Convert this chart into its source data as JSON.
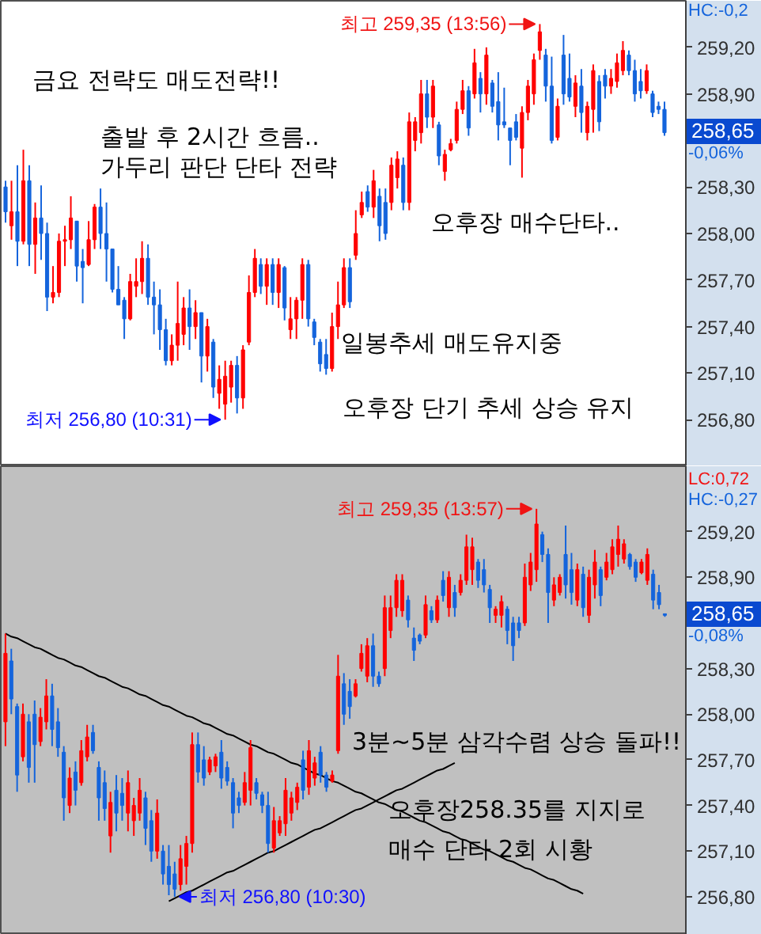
{
  "chart_data": [
    {
      "type": "candlestick",
      "categories": [
        null,
        null,
        null,
        null,
        null,
        null,
        null,
        null,
        null,
        null,
        null,
        null,
        null,
        null,
        null,
        null,
        null,
        null,
        null,
        null,
        null,
        null,
        null,
        null,
        null,
        null,
        null,
        null,
        null,
        null,
        null,
        null,
        null,
        null,
        null,
        null,
        null,
        null,
        null,
        null,
        null,
        null,
        null,
        null,
        null,
        null,
        null,
        null,
        null,
        null,
        null,
        null,
        null,
        null,
        null,
        null,
        null,
        null,
        null,
        null,
        null,
        null,
        null,
        null,
        null,
        null,
        null,
        null,
        null,
        null,
        null,
        null,
        null,
        null,
        null,
        null,
        null,
        null,
        null,
        null,
        null,
        null,
        null,
        null,
        null,
        null,
        null,
        null,
        null,
        null,
        null,
        null,
        null,
        null,
        null,
        null,
        null,
        null,
        null,
        null,
        null,
        null,
        null,
        null,
        null,
        null,
        null,
        null,
        null,
        null,
        null,
        null
      ],
      "ohlc": [
        [
          258.3,
          258.34,
          258.07,
          258.14
        ],
        [
          258.05,
          258.34,
          257.96,
          258.14
        ],
        [
          258.14,
          258.44,
          257.79,
          257.95
        ],
        [
          257.95,
          258.54,
          257.93,
          258.34
        ],
        [
          258.34,
          258.44,
          257.79,
          257.93
        ],
        [
          257.93,
          258.2,
          257.74,
          258.1
        ],
        [
          258.1,
          258.31,
          257.83,
          258.0
        ],
        [
          258.0,
          258.07,
          257.5,
          257.59
        ],
        [
          257.59,
          257.79,
          257.55,
          257.62
        ],
        [
          257.62,
          258.0,
          257.59,
          257.95
        ],
        [
          257.95,
          258.05,
          257.79,
          257.96
        ],
        [
          257.96,
          258.24,
          257.9,
          258.1
        ],
        [
          258.08,
          258.08,
          257.69,
          257.79
        ],
        [
          257.82,
          257.9,
          257.55,
          257.78
        ],
        [
          257.8,
          258.08,
          257.79,
          257.96
        ],
        [
          257.96,
          258.19,
          257.9,
          258.17
        ],
        [
          258.17,
          258.29,
          257.9,
          258.0
        ],
        [
          258.0,
          258.2,
          257.69,
          257.9
        ],
        [
          257.9,
          257.9,
          257.62,
          257.64
        ],
        [
          257.64,
          257.79,
          257.54,
          257.54
        ],
        [
          257.57,
          257.59,
          257.32,
          257.45
        ],
        [
          257.45,
          257.74,
          257.44,
          257.69
        ],
        [
          257.66,
          257.84,
          257.59,
          257.69
        ],
        [
          257.69,
          257.95,
          257.61,
          257.84
        ],
        [
          257.84,
          257.93,
          257.54,
          257.59
        ],
        [
          257.59,
          257.69,
          257.35,
          257.54
        ],
        [
          257.54,
          257.64,
          257.25,
          257.38
        ],
        [
          257.38,
          257.45,
          257.15,
          257.18
        ],
        [
          257.18,
          257.35,
          257.15,
          257.28
        ],
        [
          257.28,
          257.69,
          257.18,
          257.42
        ],
        [
          257.35,
          257.59,
          257.28,
          257.52
        ],
        [
          257.52,
          257.64,
          257.25,
          257.4
        ],
        [
          257.4,
          257.57,
          257.32,
          257.49
        ],
        [
          257.49,
          257.49,
          257.04,
          257.21
        ],
        [
          257.21,
          257.45,
          257.11,
          257.4
        ],
        [
          257.3,
          257.32,
          256.94,
          257.01
        ],
        [
          256.97,
          257.15,
          256.87,
          257.06
        ],
        [
          256.9,
          257.18,
          256.8,
          257.08
        ],
        [
          257.01,
          257.18,
          256.91,
          257.15
        ],
        [
          257.15,
          257.21,
          256.84,
          256.94
        ],
        [
          256.94,
          257.28,
          256.87,
          257.25
        ],
        [
          257.3,
          257.73,
          257.28,
          257.62
        ],
        [
          257.62,
          257.9,
          257.59,
          257.84
        ],
        [
          257.8,
          257.84,
          257.61,
          257.66
        ],
        [
          257.66,
          257.84,
          257.54,
          257.8
        ],
        [
          257.8,
          257.84,
          257.54,
          257.62
        ],
        [
          257.62,
          257.84,
          257.52,
          257.8
        ],
        [
          257.78,
          257.79,
          257.44,
          257.52
        ],
        [
          257.38,
          257.59,
          257.32,
          257.45
        ],
        [
          257.45,
          257.59,
          257.32,
          257.57
        ],
        [
          257.57,
          257.84,
          257.45,
          257.8
        ],
        [
          257.8,
          257.83,
          257.4,
          257.45
        ],
        [
          257.43,
          257.45,
          257.28,
          257.33
        ],
        [
          257.3,
          257.32,
          257.11,
          257.16
        ],
        [
          257.22,
          257.32,
          257.09,
          257.13
        ],
        [
          257.13,
          257.49,
          257.11,
          257.4
        ],
        [
          257.4,
          257.69,
          257.32,
          257.54
        ],
        [
          257.54,
          257.84,
          257.52,
          257.78
        ],
        [
          257.78,
          257.84,
          257.52,
          257.56
        ],
        [
          257.86,
          258.15,
          257.83,
          258.0
        ],
        [
          258.12,
          258.27,
          258.1,
          258.2
        ],
        [
          258.27,
          258.31,
          258.14,
          258.17
        ],
        [
          258.17,
          258.41,
          258.1,
          258.34
        ],
        [
          258.24,
          258.29,
          257.95,
          258.05
        ],
        [
          258.2,
          258.29,
          257.96,
          258.0
        ],
        [
          258.2,
          258.49,
          258.15,
          258.44
        ],
        [
          258.36,
          258.53,
          258.29,
          258.48
        ],
        [
          258.44,
          258.49,
          258.15,
          258.2
        ],
        [
          258.2,
          258.78,
          258.15,
          258.72
        ],
        [
          258.6,
          258.75,
          258.53,
          258.72
        ],
        [
          258.65,
          258.99,
          258.58,
          258.9
        ],
        [
          258.9,
          258.99,
          258.68,
          258.75
        ],
        [
          258.75,
          258.99,
          258.68,
          258.95
        ],
        [
          258.7,
          258.72,
          258.44,
          258.5
        ],
        [
          258.4,
          258.54,
          258.34,
          258.51
        ],
        [
          258.54,
          258.61,
          258.53,
          258.58
        ],
        [
          258.6,
          258.85,
          258.58,
          258.8
        ],
        [
          258.8,
          258.99,
          258.77,
          258.92
        ],
        [
          258.92,
          258.95,
          258.63,
          258.68
        ],
        [
          258.9,
          259.19,
          258.87,
          259.1
        ],
        [
          259.0,
          259.04,
          258.78,
          258.9
        ],
        [
          258.9,
          259.2,
          258.83,
          259.15
        ],
        [
          258.97,
          258.99,
          258.78,
          258.82
        ],
        [
          258.85,
          259.04,
          258.6,
          258.7
        ],
        [
          258.72,
          258.94,
          258.68,
          258.7
        ],
        [
          258.68,
          258.68,
          258.44,
          258.6
        ],
        [
          258.72,
          258.77,
          258.6,
          258.62
        ],
        [
          258.55,
          258.82,
          258.36,
          258.78
        ],
        [
          258.78,
          258.99,
          258.73,
          258.95
        ],
        [
          258.9,
          259.16,
          258.83,
          259.12
        ],
        [
          259.18,
          259.35,
          259.12,
          259.3
        ],
        [
          259.15,
          259.19,
          258.85,
          258.95
        ],
        [
          258.95,
          259.14,
          258.58,
          258.6
        ],
        [
          258.62,
          258.87,
          258.6,
          258.82
        ],
        [
          259.15,
          259.28,
          258.83,
          258.9
        ],
        [
          259.0,
          259.16,
          258.85,
          258.88
        ],
        [
          258.82,
          259.02,
          258.75,
          258.97
        ],
        [
          258.95,
          259.06,
          258.65,
          258.78
        ],
        [
          258.65,
          258.85,
          258.6,
          258.82
        ],
        [
          258.8,
          259.09,
          258.65,
          259.05
        ],
        [
          258.98,
          259.02,
          258.66,
          258.72
        ],
        [
          259.02,
          259.06,
          258.87,
          258.95
        ],
        [
          258.95,
          259.06,
          258.9,
          259.0
        ],
        [
          258.98,
          259.16,
          258.94,
          259.1
        ],
        [
          259.05,
          259.24,
          259.02,
          259.18
        ],
        [
          259.15,
          259.18,
          259.02,
          259.05
        ],
        [
          259.05,
          259.12,
          258.85,
          258.9
        ],
        [
          258.98,
          259.06,
          258.87,
          258.92
        ],
        [
          258.92,
          259.09,
          258.9,
          259.05
        ],
        [
          258.9,
          258.92,
          258.75,
          258.78
        ],
        [
          258.82,
          258.85,
          258.77,
          258.8
        ],
        [
          258.8,
          258.85,
          258.63,
          258.65
        ]
      ],
      "colors": [
        "#1464dc",
        "#ff0000",
        "#1464dc",
        "#ff0000",
        "#1464dc",
        "#ff0000",
        "#1464dc",
        "#1464dc",
        "#ff0000",
        "#ff0000",
        "#ff0000",
        "#ff0000",
        "#1464dc",
        "#1464dc",
        "#ff0000",
        "#ff0000",
        "#1464dc",
        "#1464dc",
        "#1464dc",
        "#1464dc",
        "#1464dc",
        "#ff0000",
        "#ff0000",
        "#ff0000",
        "#1464dc",
        "#1464dc",
        "#1464dc",
        "#1464dc",
        "#ff0000",
        "#ff0000",
        "#ff0000",
        "#1464dc",
        "#ff0000",
        "#1464dc",
        "#ff0000",
        "#1464dc",
        "#ff0000",
        "#ff0000",
        "#ff0000",
        "#1464dc",
        "#ff0000",
        "#ff0000",
        "#ff0000",
        "#1464dc",
        "#ff0000",
        "#1464dc",
        "#ff0000",
        "#1464dc",
        "#ff0000",
        "#ff0000",
        "#ff0000",
        "#1464dc",
        "#1464dc",
        "#1464dc",
        "#1464dc",
        "#ff0000",
        "#ff0000",
        "#ff0000",
        "#1464dc",
        "#ff0000",
        "#ff0000",
        "#1464dc",
        "#ff0000",
        "#1464dc",
        "#1464dc",
        "#ff0000",
        "#ff0000",
        "#1464dc",
        "#ff0000",
        "#ff0000",
        "#ff0000",
        "#1464dc",
        "#ff0000",
        "#1464dc",
        "#ff0000",
        "#ff0000",
        "#ff0000",
        "#ff0000",
        "#1464dc",
        "#ff0000",
        "#1464dc",
        "#ff0000",
        "#1464dc",
        "#1464dc",
        "#1464dc",
        "#1464dc",
        "#1464dc",
        "#ff0000",
        "#ff0000",
        "#ff0000",
        "#ff0000",
        "#1464dc",
        "#1464dc",
        "#ff0000",
        "#1464dc",
        "#1464dc",
        "#ff0000",
        "#1464dc",
        "#ff0000",
        "#ff0000",
        "#1464dc",
        "#1464dc",
        "#ff0000",
        "#ff0000",
        "#ff0000",
        "#1464dc",
        "#1464dc",
        "#1464dc",
        "#ff0000",
        "#1464dc",
        "#1464dc",
        "#1464dc"
      ],
      "ylim": [
        256.5,
        259.5
      ],
      "yticks": [
        {
          "value": 259.2,
          "label": "259,20"
        },
        {
          "value": 258.9,
          "label": "258,90"
        },
        {
          "value": 258.3,
          "label": "258,30"
        },
        {
          "value": 258.0,
          "label": "258,00"
        },
        {
          "value": 257.7,
          "label": "257,70"
        },
        {
          "value": 257.4,
          "label": "257,40"
        },
        {
          "value": 257.1,
          "label": "257,10"
        },
        {
          "value": 256.8,
          "label": "256,80"
        }
      ],
      "tick_labels": "y",
      "annotations": [
        "최고 259,35 (13:56)",
        "최저 256,80 (10:31)",
        "금요 전략도 매도전략!!",
        "출발 후 2시간 흐름..\n가두리 판단 단타 전략",
        "오후장 매수단타..",
        "일봉추세 매도유지중",
        "오후장 단기 추세 상승 유지",
        "258,65",
        "-0,06%",
        "HC:-0,2"
      ]
    },
    {
      "type": "candlestick",
      "categories": [
        null,
        null,
        null,
        null,
        null,
        null,
        null,
        null,
        null,
        null,
        null,
        null,
        null,
        null,
        null,
        null,
        null,
        null,
        null,
        null,
        null,
        null,
        null,
        null,
        null,
        null,
        null,
        null,
        null,
        null,
        null,
        null,
        null,
        null,
        null,
        null,
        null,
        null,
        null,
        null,
        null,
        null,
        null,
        null,
        null,
        null,
        null,
        null,
        null,
        null,
        null,
        null,
        null,
        null,
        null,
        null,
        null,
        null,
        null,
        null,
        null,
        null,
        null,
        null,
        null,
        null,
        null,
        null,
        null,
        null,
        null,
        null,
        null,
        null,
        null,
        null,
        null,
        null,
        null,
        null,
        null,
        null,
        null,
        null,
        null,
        null,
        null,
        null,
        null,
        null,
        null,
        null,
        null,
        null,
        null,
        null,
        null,
        null,
        null,
        null,
        null,
        null,
        null,
        null,
        null,
        null,
        null,
        null,
        null,
        null,
        null,
        null,
        null,
        null
      ],
      "ohlc": [
        [
          257.95,
          258.53,
          257.79,
          258.4
        ],
        [
          258.35,
          258.43,
          258.0,
          258.1
        ],
        [
          258.05,
          258.07,
          257.49,
          257.6
        ],
        [
          257.72,
          258.07,
          257.69,
          258.0
        ],
        [
          257.95,
          258.0,
          257.55,
          257.65
        ],
        [
          258.0,
          258.09,
          257.55,
          257.8
        ],
        [
          257.82,
          258.04,
          257.79,
          257.98
        ],
        [
          257.95,
          258.23,
          257.9,
          258.12
        ],
        [
          258.12,
          258.2,
          257.79,
          257.9
        ],
        [
          257.95,
          258.04,
          257.72,
          257.78
        ],
        [
          257.75,
          257.79,
          257.3,
          257.45
        ],
        [
          257.4,
          257.65,
          257.35,
          257.58
        ],
        [
          257.62,
          257.69,
          257.4,
          257.5
        ],
        [
          257.55,
          257.83,
          257.53,
          257.76
        ],
        [
          257.72,
          257.93,
          257.69,
          257.85
        ],
        [
          257.88,
          257.93,
          257.74,
          257.76
        ],
        [
          257.65,
          257.69,
          257.3,
          257.45
        ],
        [
          257.55,
          257.63,
          257.3,
          257.38
        ],
        [
          257.2,
          257.49,
          257.09,
          257.42
        ],
        [
          257.5,
          257.6,
          257.23,
          257.35
        ],
        [
          257.48,
          257.58,
          257.3,
          257.4
        ],
        [
          257.35,
          257.63,
          257.23,
          257.55
        ],
        [
          257.3,
          257.45,
          257.2,
          257.4
        ],
        [
          257.35,
          257.58,
          257.3,
          257.5
        ],
        [
          257.45,
          257.49,
          257.14,
          257.25
        ],
        [
          257.3,
          257.37,
          257.03,
          257.1
        ],
        [
          257.1,
          257.44,
          257.05,
          257.35
        ],
        [
          257.1,
          257.14,
          256.88,
          256.95
        ],
        [
          257.0,
          257.14,
          256.81,
          256.88
        ],
        [
          256.95,
          257.03,
          256.8,
          256.85
        ],
        [
          256.88,
          257.14,
          256.84,
          257.05
        ],
        [
          257.0,
          257.2,
          256.88,
          257.15
        ],
        [
          257.15,
          257.88,
          257.09,
          257.8
        ],
        [
          257.8,
          257.88,
          257.55,
          257.62
        ],
        [
          257.7,
          257.79,
          257.53,
          257.58
        ],
        [
          257.62,
          257.72,
          257.6,
          257.7
        ],
        [
          257.66,
          257.74,
          257.62,
          257.72
        ],
        [
          257.75,
          257.83,
          257.51,
          257.58
        ],
        [
          257.65,
          257.69,
          257.53,
          257.56
        ],
        [
          257.55,
          257.58,
          257.25,
          257.35
        ],
        [
          257.45,
          257.49,
          257.35,
          257.4
        ],
        [
          257.42,
          257.62,
          257.4,
          257.55
        ],
        [
          257.5,
          257.83,
          257.4,
          257.78
        ],
        [
          257.55,
          257.58,
          257.44,
          257.48
        ],
        [
          257.47,
          257.49,
          257.35,
          257.4
        ],
        [
          257.4,
          257.49,
          257.09,
          257.15
        ],
        [
          257.12,
          257.39,
          257.09,
          257.3
        ],
        [
          257.22,
          257.33,
          257.2,
          257.3
        ],
        [
          257.28,
          257.58,
          257.2,
          257.5
        ],
        [
          257.35,
          257.49,
          257.3,
          257.45
        ],
        [
          257.42,
          257.55,
          257.37,
          257.52
        ],
        [
          257.7,
          257.76,
          257.44,
          257.5
        ],
        [
          257.52,
          257.83,
          257.47,
          257.76
        ],
        [
          257.58,
          257.72,
          257.53,
          257.68
        ],
        [
          257.75,
          257.79,
          257.55,
          257.6
        ],
        [
          257.6,
          257.62,
          257.49,
          257.52
        ],
        [
          257.56,
          257.63,
          257.55,
          257.6
        ],
        [
          257.76,
          258.39,
          257.74,
          258.25
        ],
        [
          258.2,
          258.27,
          257.93,
          258.0
        ],
        [
          258.15,
          258.23,
          257.97,
          258.05
        ],
        [
          258.12,
          258.23,
          258.11,
          258.2
        ],
        [
          258.3,
          258.46,
          258.28,
          258.4
        ],
        [
          258.25,
          258.5,
          258.21,
          258.45
        ],
        [
          258.45,
          258.53,
          258.18,
          258.25
        ],
        [
          258.25,
          258.28,
          258.18,
          258.2
        ],
        [
          258.3,
          258.78,
          258.25,
          258.7
        ],
        [
          258.55,
          258.78,
          258.5,
          258.7
        ],
        [
          258.7,
          258.92,
          258.64,
          258.88
        ],
        [
          258.68,
          258.92,
          258.64,
          258.88
        ],
        [
          258.75,
          258.78,
          258.57,
          258.62
        ],
        [
          258.5,
          258.57,
          258.35,
          258.42
        ],
        [
          258.52,
          258.53,
          258.46,
          258.48
        ],
        [
          258.52,
          258.78,
          258.5,
          258.72
        ],
        [
          258.68,
          258.71,
          258.6,
          258.62
        ],
        [
          258.62,
          258.78,
          258.6,
          258.75
        ],
        [
          258.88,
          258.94,
          258.74,
          258.78
        ],
        [
          258.7,
          258.94,
          258.64,
          258.9
        ],
        [
          258.8,
          258.85,
          258.64,
          258.7
        ],
        [
          258.8,
          258.92,
          258.78,
          258.88
        ],
        [
          258.88,
          259.18,
          258.85,
          259.1
        ],
        [
          258.95,
          259.16,
          258.85,
          259.1
        ],
        [
          259.0,
          259.02,
          258.83,
          258.88
        ],
        [
          258.95,
          259.02,
          258.8,
          258.85
        ],
        [
          258.82,
          258.85,
          258.6,
          258.7
        ],
        [
          258.65,
          258.71,
          258.6,
          258.69
        ],
        [
          258.65,
          258.78,
          258.57,
          258.74
        ],
        [
          258.69,
          258.71,
          258.46,
          258.55
        ],
        [
          258.6,
          258.64,
          258.35,
          258.45
        ],
        [
          258.6,
          258.64,
          258.5,
          258.55
        ],
        [
          258.6,
          258.99,
          258.58,
          258.9
        ],
        [
          258.85,
          259.06,
          258.81,
          259.0
        ],
        [
          258.95,
          259.35,
          258.87,
          259.25
        ],
        [
          259.18,
          259.2,
          259.0,
          259.05
        ],
        [
          259.05,
          259.09,
          258.6,
          258.8
        ],
        [
          258.75,
          258.9,
          258.71,
          258.85
        ],
        [
          258.8,
          258.92,
          258.78,
          258.9
        ],
        [
          259.05,
          259.24,
          258.76,
          258.85
        ],
        [
          258.95,
          259.06,
          258.72,
          258.8
        ],
        [
          258.75,
          258.99,
          258.71,
          258.95
        ],
        [
          258.92,
          258.97,
          258.64,
          258.7
        ],
        [
          258.65,
          258.95,
          258.6,
          258.9
        ],
        [
          258.85,
          259.08,
          258.76,
          259.0
        ],
        [
          258.95,
          258.97,
          258.71,
          258.78
        ],
        [
          258.9,
          259.06,
          258.88,
          259.0
        ],
        [
          258.95,
          259.15,
          258.92,
          259.1
        ],
        [
          259.05,
          259.24,
          258.97,
          259.15
        ],
        [
          259.02,
          259.15,
          258.99,
          259.12
        ],
        [
          259.05,
          259.06,
          258.95,
          258.97
        ],
        [
          259.0,
          259.02,
          258.87,
          258.9
        ],
        [
          258.93,
          259.02,
          258.92,
          259.0
        ],
        [
          258.88,
          259.09,
          258.85,
          259.05
        ],
        [
          258.92,
          258.95,
          258.69,
          258.75
        ],
        [
          258.8,
          258.85,
          258.69,
          258.72
        ],
        [
          258.66,
          258.66,
          258.64,
          258.65
        ]
      ],
      "colors": [
        "#ff0000",
        "#1464dc",
        "#1464dc",
        "#ff0000",
        "#1464dc",
        "#1464dc",
        "#ff0000",
        "#ff0000",
        "#1464dc",
        "#1464dc",
        "#1464dc",
        "#ff0000",
        "#1464dc",
        "#ff0000",
        "#ff0000",
        "#1464dc",
        "#1464dc",
        "#1464dc",
        "#ff0000",
        "#1464dc",
        "#1464dc",
        "#ff0000",
        "#ff0000",
        "#ff0000",
        "#1464dc",
        "#1464dc",
        "#ff0000",
        "#1464dc",
        "#1464dc",
        "#1464dc",
        "#ff0000",
        "#ff0000",
        "#ff0000",
        "#1464dc",
        "#1464dc",
        "#ff0000",
        "#ff0000",
        "#1464dc",
        "#1464dc",
        "#1464dc",
        "#1464dc",
        "#ff0000",
        "#ff0000",
        "#1464dc",
        "#1464dc",
        "#1464dc",
        "#ff0000",
        "#ff0000",
        "#ff0000",
        "#ff0000",
        "#ff0000",
        "#1464dc",
        "#ff0000",
        "#ff0000",
        "#1464dc",
        "#1464dc",
        "#ff0000",
        "#ff0000",
        "#1464dc",
        "#1464dc",
        "#ff0000",
        "#ff0000",
        "#ff0000",
        "#1464dc",
        "#1464dc",
        "#ff0000",
        "#ff0000",
        "#ff0000",
        "#ff0000",
        "#1464dc",
        "#1464dc",
        "#1464dc",
        "#ff0000",
        "#1464dc",
        "#ff0000",
        "#1464dc",
        "#ff0000",
        "#1464dc",
        "#ff0000",
        "#ff0000",
        "#ff0000",
        "#1464dc",
        "#1464dc",
        "#1464dc",
        "#ff0000",
        "#ff0000",
        "#1464dc",
        "#1464dc",
        "#1464dc",
        "#ff0000",
        "#ff0000",
        "#ff0000",
        "#1464dc",
        "#1464dc",
        "#ff0000",
        "#ff0000",
        "#1464dc",
        "#1464dc",
        "#ff0000",
        "#1464dc",
        "#ff0000",
        "#ff0000",
        "#1464dc",
        "#ff0000",
        "#ff0000",
        "#ff0000",
        "#ff0000",
        "#1464dc",
        "#1464dc",
        "#ff0000",
        "#ff0000",
        "#1464dc",
        "#1464dc",
        "#1464dc"
      ],
      "series": [
        {
          "type": "line",
          "color": "#000000",
          "values": [
            258.53,
            258.51,
            258.5,
            258.48,
            258.46,
            258.44,
            258.43,
            258.41,
            258.39,
            258.37,
            258.36,
            258.34,
            258.32,
            258.31,
            258.29,
            258.27,
            258.25,
            258.24,
            258.22,
            258.2,
            258.18,
            258.17,
            258.15,
            258.13,
            258.12,
            258.1,
            258.08,
            258.06,
            258.05,
            258.03,
            258.01,
            257.99,
            257.98,
            257.96,
            257.94,
            257.93,
            257.91,
            257.89,
            257.87,
            257.86,
            257.84,
            257.82,
            257.8,
            257.79,
            257.77,
            257.75,
            257.74,
            257.72,
            257.7,
            257.68,
            257.67,
            257.65,
            257.63,
            257.61,
            257.6,
            257.58,
            257.56,
            257.55,
            257.53,
            257.51,
            257.49,
            257.48,
            257.46,
            257.44,
            257.42,
            257.41,
            257.39,
            257.37,
            257.36,
            257.34,
            257.32,
            257.3,
            257.29,
            257.27,
            257.25,
            257.23,
            257.22,
            257.2,
            257.18,
            257.17,
            257.15,
            257.13,
            257.11,
            257.1,
            257.08,
            257.06,
            257.04,
            257.03,
            257.01,
            256.99,
            256.98,
            256.96,
            256.94,
            256.92,
            256.91,
            256.89,
            256.87,
            256.85,
            256.84,
            256.82,
            null,
            null,
            null,
            null,
            null,
            null,
            null,
            null,
            null,
            null,
            null,
            null,
            null,
            null
          ]
        },
        {
          "type": "line",
          "color": "#000000",
          "values": [
            null,
            null,
            null,
            null,
            null,
            null,
            null,
            null,
            null,
            null,
            null,
            null,
            null,
            null,
            null,
            null,
            null,
            null,
            null,
            null,
            null,
            null,
            null,
            null,
            null,
            null,
            null,
            null,
            256.77,
            256.79,
            256.81,
            256.83,
            256.84,
            256.86,
            256.88,
            256.9,
            256.92,
            256.94,
            256.96,
            256.97,
            256.99,
            257.01,
            257.03,
            257.05,
            257.07,
            257.09,
            257.1,
            257.12,
            257.14,
            257.16,
            257.18,
            257.2,
            257.22,
            257.24,
            257.25,
            257.27,
            257.29,
            257.31,
            257.33,
            257.35,
            257.37,
            257.38,
            257.4,
            257.42,
            257.44,
            257.46,
            257.48,
            257.5,
            257.51,
            257.53,
            257.55,
            257.57,
            257.59,
            257.61,
            257.63,
            257.64,
            257.66,
            257.68,
            null,
            null,
            null,
            null,
            null,
            null,
            null,
            null,
            null,
            null,
            null,
            null,
            null,
            null,
            null,
            null,
            null,
            null,
            null,
            null,
            null,
            null,
            null,
            null,
            null,
            null,
            null,
            null,
            null,
            null,
            null,
            null,
            null,
            null,
            null,
            null
          ]
        }
      ],
      "ylim": [
        256.55,
        259.63
      ],
      "yticks": [
        {
          "value": 259.2,
          "label": "259,20"
        },
        {
          "value": 258.9,
          "label": "258,90"
        },
        {
          "value": 258.3,
          "label": "258,30"
        },
        {
          "value": 258.0,
          "label": "258,00"
        },
        {
          "value": 257.7,
          "label": "257,70"
        },
        {
          "value": 257.4,
          "label": "257,40"
        },
        {
          "value": 257.1,
          "label": "257,10"
        },
        {
          "value": 256.8,
          "label": "256,80"
        }
      ],
      "tick_labels": "y",
      "annotations": [
        "최고 259,35 (13:57)",
        "최저 256,80 (10:30)",
        "3분~5분 삼각수렴 상승 돌파!!",
        "오후장258.35를 지지로\n매수 단타 2회 시황",
        "258,65",
        "-0,08%",
        "LC:0,72",
        "HC:-0,27"
      ]
    }
  ]
}
